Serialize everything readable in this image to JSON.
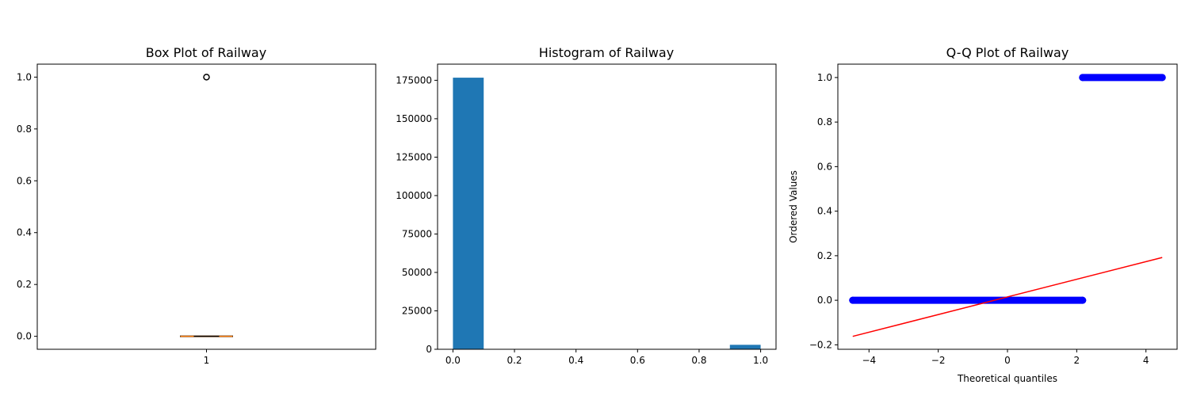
{
  "chart_data": [
    {
      "type": "box",
      "title": "Box Plot of Railway",
      "xlabel": "",
      "ylabel": "",
      "xticks": [
        "1"
      ],
      "yticks": [
        "0.0",
        "0.2",
        "0.4",
        "0.6",
        "0.8",
        "1.0"
      ],
      "ylim": [
        -0.05,
        1.05
      ],
      "box": {
        "q1": 0.0,
        "median": 0.0,
        "q3": 0.0,
        "whisker_low": 0.0,
        "whisker_high": 0.0
      },
      "outliers": [
        1.0
      ],
      "grid": false,
      "colors": {
        "box": "#000000",
        "median": "#ff7f0e",
        "outlier": "#000000"
      }
    },
    {
      "type": "bar",
      "title": "Histogram of Railway",
      "xlabel": "",
      "ylabel": "",
      "xticks": [
        "0.0",
        "0.2",
        "0.4",
        "0.6",
        "0.8",
        "1.0"
      ],
      "yticks": [
        "0",
        "25000",
        "50000",
        "75000",
        "100000",
        "125000",
        "150000",
        "175000"
      ],
      "xlim": [
        -0.05,
        1.05
      ],
      "ylim": [
        0,
        185500
      ],
      "bins": [
        {
          "start": 0.0,
          "end": 0.1,
          "count": 176700
        },
        {
          "start": 0.1,
          "end": 0.2,
          "count": 0
        },
        {
          "start": 0.2,
          "end": 0.3,
          "count": 0
        },
        {
          "start": 0.3,
          "end": 0.4,
          "count": 0
        },
        {
          "start": 0.4,
          "end": 0.5,
          "count": 0
        },
        {
          "start": 0.5,
          "end": 0.6,
          "count": 0
        },
        {
          "start": 0.6,
          "end": 0.7,
          "count": 0
        },
        {
          "start": 0.7,
          "end": 0.8,
          "count": 0
        },
        {
          "start": 0.8,
          "end": 0.9,
          "count": 0
        },
        {
          "start": 0.9,
          "end": 1.0,
          "count": 2900
        }
      ],
      "grid": false,
      "colors": {
        "bar": "#1f77b4"
      }
    },
    {
      "type": "scatter",
      "title": "Q-Q Plot of Railway",
      "xlabel": "Theoretical quantiles",
      "ylabel": "Ordered Values",
      "xticks": [
        "−4",
        "−2",
        "0",
        "2",
        "4"
      ],
      "yticks": [
        "−0.2",
        "0.0",
        "0.2",
        "0.4",
        "0.6",
        "0.8",
        "1.0"
      ],
      "xlim": [
        -4.9,
        4.9
      ],
      "ylim": [
        -0.22,
        1.06
      ],
      "point_groups": [
        {
          "y": 0.0,
          "x_start": -4.47,
          "x_end": 2.17
        },
        {
          "y": 1.0,
          "x_start": 2.17,
          "x_end": 4.47
        }
      ],
      "fit_line": {
        "x": [
          -4.47,
          4.47
        ],
        "y": [
          -0.162,
          0.192
        ]
      },
      "grid": false,
      "colors": {
        "points": "#0000ff",
        "line": "#ff0000"
      }
    }
  ]
}
